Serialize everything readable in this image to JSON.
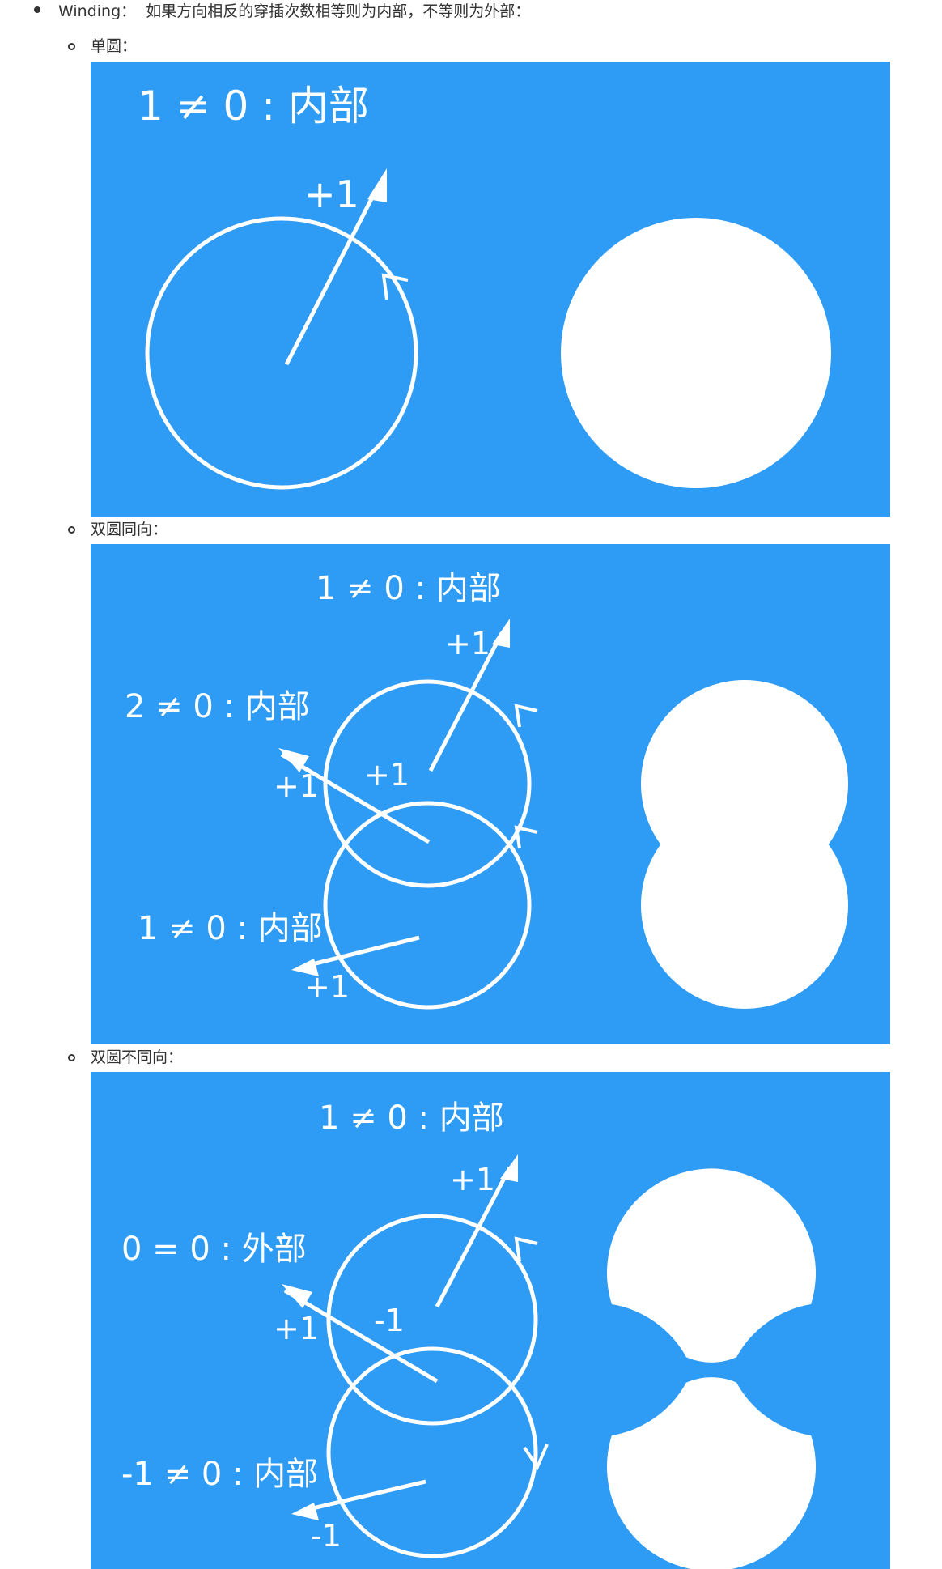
{
  "intro": {
    "term": "Winding：",
    "desc": "如果方向相反的穿插次数相等则为内部，不等则为外部："
  },
  "sections": [
    {
      "caption": "单圆：",
      "labels": {
        "main": "1 ≠ 0 : 内部",
        "plus": "+1"
      }
    },
    {
      "caption": "双圆同向：",
      "labels": {
        "top": "1 ≠ 0 : 内部",
        "top_plus": "+1",
        "mid": "2 ≠ 0 : 内部",
        "mid_plus_outer": "+1",
        "mid_plus_inner": "+1",
        "bottom": "1 ≠ 0 : 内部",
        "bottom_plus": "+1"
      }
    },
    {
      "caption": "双圆不同向：",
      "labels": {
        "top": "1 ≠ 0 : 内部",
        "top_plus": "+1",
        "mid": "0 = 0 : 外部",
        "mid_plus": "+1",
        "mid_minus": "-1",
        "bottom": "-1 ≠ 0 : 内部",
        "bottom_minus": "-1"
      }
    }
  ],
  "colors": {
    "panel": "#2e9bf5",
    "stroke": "#ffffff",
    "text": "#333333"
  }
}
